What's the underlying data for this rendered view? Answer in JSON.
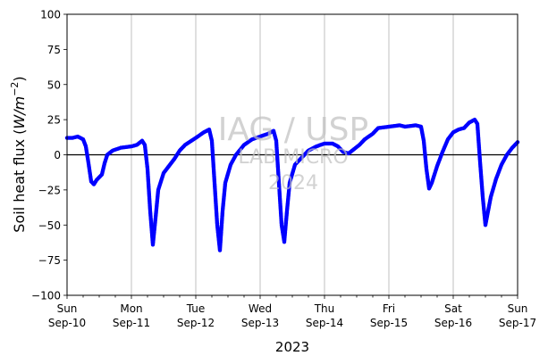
{
  "chart_data": {
    "type": "scatter",
    "ylabel": "Soil heat flux (W/m⁻²)",
    "ylabel_parts": [
      "Soil heat flux (",
      "W",
      "/",
      "m",
      "−2",
      ")"
    ],
    "xlabel": "2023",
    "ylim": [
      -100,
      100
    ],
    "yticks": [
      -100,
      -75,
      -50,
      -25,
      0,
      25,
      50,
      75,
      100
    ],
    "xlim": [
      "2023-09-10",
      "2023-09-17"
    ],
    "xticks": [
      {
        "date": "2023-09-10",
        "day": "Sun",
        "label": "Sep-10"
      },
      {
        "date": "2023-09-11",
        "day": "Mon",
        "label": "Sep-11"
      },
      {
        "date": "2023-09-12",
        "day": "Tue",
        "label": "Sep-12"
      },
      {
        "date": "2023-09-13",
        "day": "Wed",
        "label": "Sep-13"
      },
      {
        "date": "2023-09-14",
        "day": "Thu",
        "label": "Sep-14"
      },
      {
        "date": "2023-09-15",
        "day": "Fri",
        "label": "Sep-15"
      },
      {
        "date": "2023-09-16",
        "day": "Sat",
        "label": "Sep-16"
      },
      {
        "date": "2023-09-17",
        "day": "Sun",
        "label": "Sep-17"
      }
    ],
    "grid": "vertical",
    "zero_line": true,
    "series": [
      {
        "color": "#0000ff",
        "points": [
          [
            "2023-09-10 00:00",
            12
          ],
          [
            "2023-09-10 02:00",
            12
          ],
          [
            "2023-09-10 04:00",
            13
          ],
          [
            "2023-09-10 06:00",
            11
          ],
          [
            "2023-09-10 07:00",
            6
          ],
          [
            "2023-09-10 08:00",
            -6
          ],
          [
            "2023-09-10 09:00",
            -19
          ],
          [
            "2023-09-10 10:00",
            -21
          ],
          [
            "2023-09-10 11:00",
            -18
          ],
          [
            "2023-09-10 13:00",
            -14
          ],
          [
            "2023-09-10 14:00",
            -6
          ],
          [
            "2023-09-10 15:00",
            0
          ],
          [
            "2023-09-10 17:00",
            3
          ],
          [
            "2023-09-10 20:00",
            5
          ],
          [
            "2023-09-11 00:00",
            6
          ],
          [
            "2023-09-11 02:00",
            7
          ],
          [
            "2023-09-11 04:00",
            10
          ],
          [
            "2023-09-11 05:00",
            7
          ],
          [
            "2023-09-11 06:00",
            -10
          ],
          [
            "2023-09-11 07:00",
            -40
          ],
          [
            "2023-09-11 08:00",
            -64
          ],
          [
            "2023-09-11 09:00",
            -45
          ],
          [
            "2023-09-11 10:00",
            -25
          ],
          [
            "2023-09-11 12:00",
            -13
          ],
          [
            "2023-09-11 14:00",
            -8
          ],
          [
            "2023-09-11 16:00",
            -3
          ],
          [
            "2023-09-11 18:00",
            3
          ],
          [
            "2023-09-11 20:00",
            7
          ],
          [
            "2023-09-12 00:00",
            12
          ],
          [
            "2023-09-12 03:00",
            16
          ],
          [
            "2023-09-12 05:00",
            18
          ],
          [
            "2023-09-12 06:00",
            10
          ],
          [
            "2023-09-12 07:00",
            -20
          ],
          [
            "2023-09-12 08:00",
            -50
          ],
          [
            "2023-09-12 09:00",
            -68
          ],
          [
            "2023-09-12 10:00",
            -40
          ],
          [
            "2023-09-12 11:00",
            -20
          ],
          [
            "2023-09-12 13:00",
            -7
          ],
          [
            "2023-09-12 15:00",
            0
          ],
          [
            "2023-09-12 18:00",
            7
          ],
          [
            "2023-09-12 21:00",
            11
          ],
          [
            "2023-09-13 00:00",
            13
          ],
          [
            "2023-09-13 03:00",
            15
          ],
          [
            "2023-09-13 05:00",
            17
          ],
          [
            "2023-09-13 06:00",
            10
          ],
          [
            "2023-09-13 07:00",
            -20
          ],
          [
            "2023-09-13 08:00",
            -50
          ],
          [
            "2023-09-13 09:00",
            -62
          ],
          [
            "2023-09-13 10:00",
            -40
          ],
          [
            "2023-09-13 11:00",
            -20
          ],
          [
            "2023-09-13 13:00",
            -7
          ],
          [
            "2023-09-13 16:00",
            -1
          ],
          [
            "2023-09-13 18:00",
            3
          ],
          [
            "2023-09-13 21:00",
            6
          ],
          [
            "2023-09-14 00:00",
            8
          ],
          [
            "2023-09-14 03:00",
            8
          ],
          [
            "2023-09-14 05:00",
            6
          ],
          [
            "2023-09-14 07:00",
            2
          ],
          [
            "2023-09-14 09:00",
            1
          ],
          [
            "2023-09-14 11:00",
            4
          ],
          [
            "2023-09-14 13:00",
            7
          ],
          [
            "2023-09-14 15:00",
            11
          ],
          [
            "2023-09-14 18:00",
            15
          ],
          [
            "2023-09-14 20:00",
            19
          ],
          [
            "2023-09-15 00:00",
            20
          ],
          [
            "2023-09-15 04:00",
            21
          ],
          [
            "2023-09-15 06:00",
            20
          ],
          [
            "2023-09-15 10:00",
            21
          ],
          [
            "2023-09-15 12:00",
            20
          ],
          [
            "2023-09-15 13:00",
            10
          ],
          [
            "2023-09-15 14:00",
            -10
          ],
          [
            "2023-09-15 15:00",
            -24
          ],
          [
            "2023-09-15 16:00",
            -20
          ],
          [
            "2023-09-15 18:00",
            -8
          ],
          [
            "2023-09-15 20:00",
            2
          ],
          [
            "2023-09-15 22:00",
            11
          ],
          [
            "2023-09-16 00:00",
            16
          ],
          [
            "2023-09-16 02:00",
            18
          ],
          [
            "2023-09-16 04:00",
            19
          ],
          [
            "2023-09-16 06:00",
            23
          ],
          [
            "2023-09-16 08:00",
            25
          ],
          [
            "2023-09-16 09:00",
            22
          ],
          [
            "2023-09-16 10:00",
            -5
          ],
          [
            "2023-09-16 11:00",
            -30
          ],
          [
            "2023-09-16 12:00",
            -50
          ],
          [
            "2023-09-16 13:00",
            -40
          ],
          [
            "2023-09-16 14:00",
            -30
          ],
          [
            "2023-09-16 16:00",
            -17
          ],
          [
            "2023-09-16 18:00",
            -7
          ],
          [
            "2023-09-16 20:00",
            0
          ],
          [
            "2023-09-16 22:00",
            5
          ],
          [
            "2023-09-17 00:00",
            9
          ]
        ]
      }
    ]
  }
}
